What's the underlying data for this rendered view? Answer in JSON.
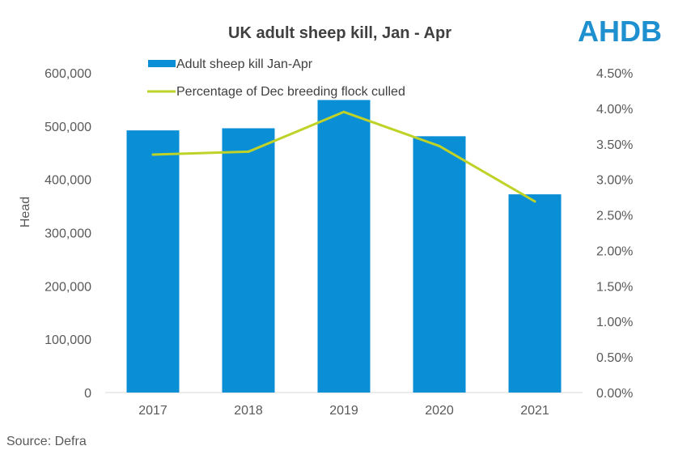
{
  "chart_data": {
    "type": "bar",
    "title": "UK adult sheep kill, Jan - Apr",
    "categories": [
      "2017",
      "2018",
      "2019",
      "2020",
      "2021"
    ],
    "series": [
      {
        "name": "Adult sheep kill Jan-Apr",
        "type": "bar",
        "axis": "left",
        "values": [
          492000,
          496000,
          549000,
          481000,
          372000
        ]
      },
      {
        "name": "Percentage of Dec breeding flock culled",
        "type": "line",
        "axis": "right",
        "values": [
          3.35,
          3.39,
          3.95,
          3.47,
          2.69
        ]
      }
    ],
    "ylabel": "Head",
    "ylim": [
      0,
      600000
    ],
    "yticks": [
      "0",
      "100,000",
      "200,000",
      "300,000",
      "400,000",
      "500,000",
      "600,000"
    ],
    "y2lim": [
      0,
      4.5
    ],
    "y2ticks": [
      "0.00%",
      "0.50%",
      "1.00%",
      "1.50%",
      "2.00%",
      "2.50%",
      "3.00%",
      "3.50%",
      "4.00%",
      "4.50%"
    ],
    "colors": {
      "bar": "#0A8FD6",
      "line": "#BFD228",
      "logo": "#1E8FCF"
    }
  },
  "branding": {
    "logo_text": "AHDB"
  },
  "footer": {
    "source": "Source: Defra"
  }
}
